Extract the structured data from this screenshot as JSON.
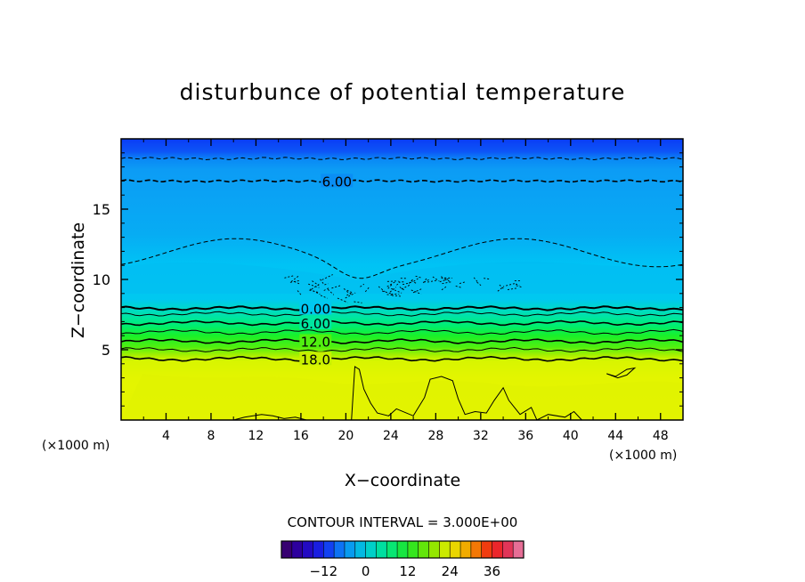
{
  "chart_data": {
    "type": "heatmap",
    "title": "disturbunce of potential temperature",
    "xlabel": "X−coordinate",
    "ylabel": "Z−coordinate",
    "x_unit": "(×1000 m)",
    "z_unit": "(×1000 m)",
    "xlim": [
      0,
      50
    ],
    "ylim": [
      0,
      20
    ],
    "x_ticks": [
      4,
      8,
      12,
      16,
      20,
      24,
      28,
      32,
      36,
      40,
      44,
      48
    ],
    "y_ticks": [
      5,
      10,
      15
    ],
    "contour_interval_label": "CONTOUR INTERVAL = 3.000E+00",
    "contour_labels": [
      "6.00",
      "0.00",
      "6.00",
      "12.0",
      "18.0"
    ],
    "colorbar": {
      "range": [
        -24,
        45
      ],
      "step": 3,
      "ticks": [
        -12,
        0,
        12,
        24,
        36
      ],
      "tick_labels": [
        "−12",
        "0",
        "12",
        "24",
        "36"
      ]
    },
    "layers": [
      {
        "z_bottom": 18.5,
        "z_top": 20,
        "value": -12
      },
      {
        "z_bottom": 17.0,
        "z_top": 18.5,
        "value": -9
      },
      {
        "z_bottom": 10.5,
        "z_top": 17.0,
        "value": -6
      },
      {
        "z_bottom": 8.3,
        "z_top": 10.5,
        "value": -3
      },
      {
        "z_bottom": 7.8,
        "z_top": 8.3,
        "value": 0
      },
      {
        "z_bottom": 7.2,
        "z_top": 7.8,
        "value": 3
      },
      {
        "z_bottom": 6.5,
        "z_top": 7.2,
        "value": 6
      },
      {
        "z_bottom": 5.8,
        "z_top": 6.5,
        "value": 9
      },
      {
        "z_bottom": 5.2,
        "z_top": 5.8,
        "value": 12
      },
      {
        "z_bottom": 4.4,
        "z_top": 5.2,
        "value": 15
      },
      {
        "z_bottom": 0,
        "z_top": 4.4,
        "value": 18
      }
    ]
  }
}
